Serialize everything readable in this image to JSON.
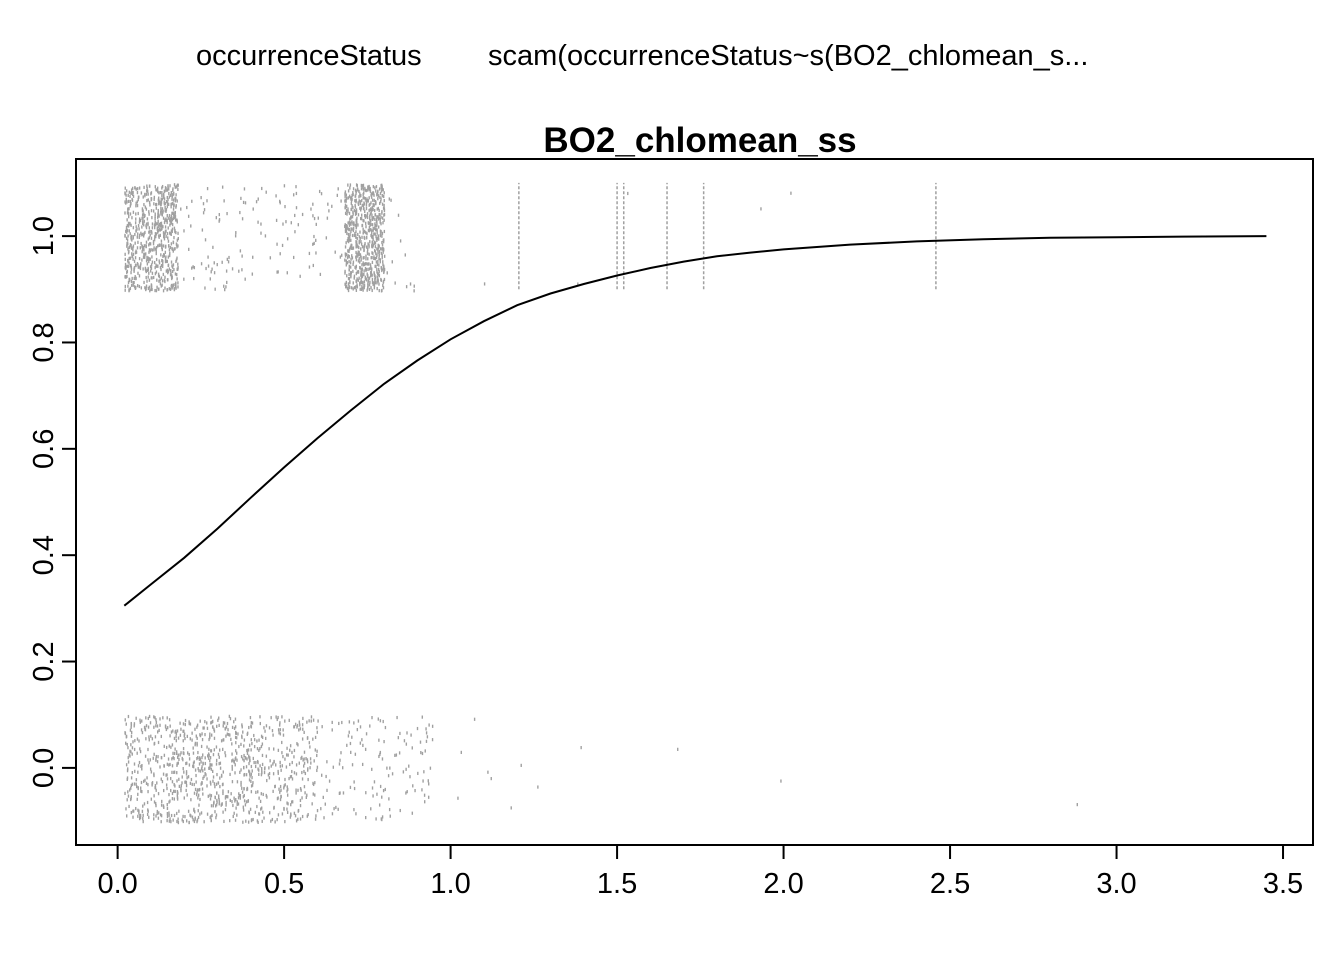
{
  "header": {
    "response_label": "occurrenceStatus",
    "model_label": "scam(occurrenceStatus~s(BO2_chlomean_s..."
  },
  "chart_data": {
    "type": "line",
    "title": "BO2_chlomean_ss",
    "xlabel": "",
    "ylabel": "",
    "xlim": [
      -0.125,
      3.59
    ],
    "ylim": [
      -0.145,
      1.145
    ],
    "x_ticks": [
      "0.0",
      "0.5",
      "1.0",
      "1.5",
      "2.0",
      "2.5",
      "3.0",
      "3.5"
    ],
    "y_ticks": [
      "0.0",
      "0.2",
      "0.4",
      "0.6",
      "0.8",
      "1.0"
    ],
    "grid": false,
    "series": [
      {
        "kind": "fitted-curve",
        "color": "#000000",
        "x": [
          0.02,
          0.1,
          0.2,
          0.3,
          0.4,
          0.5,
          0.6,
          0.7,
          0.8,
          0.9,
          1.0,
          1.1,
          1.2,
          1.3,
          1.4,
          1.5,
          1.6,
          1.7,
          1.8,
          1.9,
          2.0,
          2.2,
          2.4,
          2.6,
          2.8,
          3.0,
          3.2,
          3.45
        ],
        "y": [
          0.305,
          0.345,
          0.395,
          0.45,
          0.508,
          0.565,
          0.62,
          0.672,
          0.722,
          0.766,
          0.806,
          0.84,
          0.87,
          0.892,
          0.91,
          0.926,
          0.94,
          0.952,
          0.962,
          0.969,
          0.975,
          0.984,
          0.99,
          0.994,
          0.997,
          0.998,
          0.999,
          1.0
        ]
      },
      {
        "kind": "rug-presence",
        "color": "#a0a0a0",
        "y_range": [
          0.9,
          1.1
        ],
        "clusters": [
          {
            "x_range": [
              0.02,
              0.18
            ],
            "density": "high"
          },
          {
            "x_range": [
              0.18,
              0.68
            ],
            "density": "low"
          },
          {
            "x_range": [
              0.68,
              0.8
            ],
            "density": "high"
          },
          {
            "x_range": [
              0.8,
              0.9
            ],
            "density": "very-low"
          },
          {
            "x_range": [
              1.2,
              1.21
            ],
            "density": "vertical-line"
          },
          {
            "x_range": [
              1.495,
              1.505
            ],
            "density": "vertical-line"
          },
          {
            "x_range": [
              1.515,
              1.525
            ],
            "density": "vertical-line"
          },
          {
            "x_range": [
              1.645,
              1.655
            ],
            "density": "vertical-line"
          },
          {
            "x_range": [
              1.755,
              1.765
            ],
            "density": "vertical-line"
          },
          {
            "x_range": [
              2.455,
              2.46
            ],
            "density": "vertical-line"
          }
        ],
        "isolated_x": [
          1.1,
          1.38,
          1.53,
          1.93,
          2.02
        ]
      },
      {
        "kind": "rug-absence",
        "color": "#a0a0a0",
        "y_range": [
          -0.1,
          0.1
        ],
        "clusters": [
          {
            "x_range": [
              0.02,
              0.4
            ],
            "density": "high"
          },
          {
            "x_range": [
              0.4,
              0.6
            ],
            "density": "medium"
          },
          {
            "x_range": [
              0.6,
              0.95
            ],
            "density": "low"
          }
        ],
        "isolated_x": [
          1.02,
          1.03,
          1.07,
          1.11,
          1.12,
          1.18,
          1.21,
          1.26,
          1.39,
          1.68,
          1.99,
          2.88
        ]
      }
    ]
  }
}
